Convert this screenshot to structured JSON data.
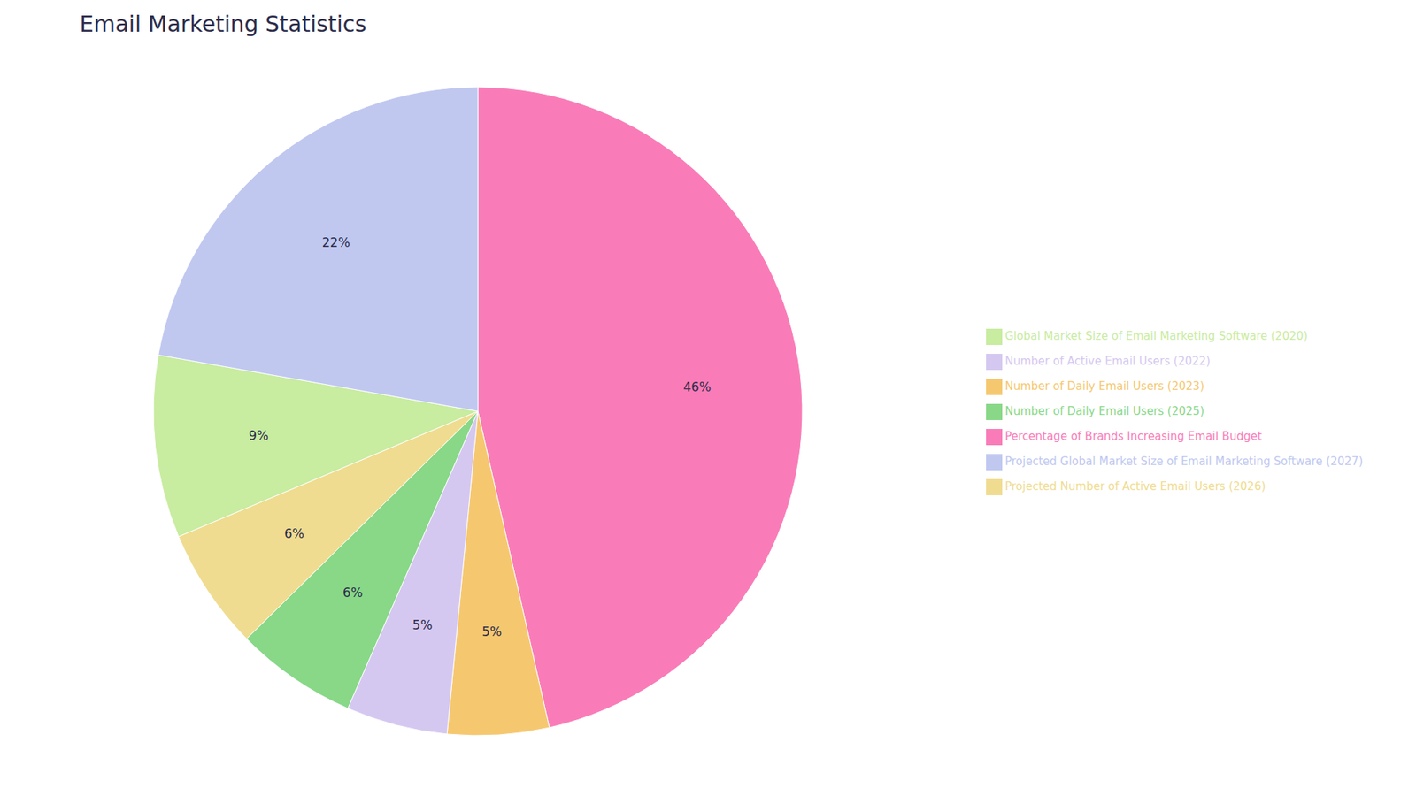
{
  "chart_data": {
    "type": "pie",
    "title": "Email Marketing Statistics",
    "categories": [
      "Percentage of Brands Increasing Email Budget",
      "Number of Daily Email Users (2023)",
      "Number of Active Email Users (2022)",
      "Number of Daily Email Users (2025)",
      "Projected Number of Active Email Users (2026)",
      "Global Market Size of Email Marketing Software (2020)",
      "Projected Global Market Size of Email Marketing Software (2027)"
    ],
    "values": [
      46,
      5,
      5,
      6,
      6,
      9,
      22
    ],
    "value_labels": [
      "46%",
      "5%",
      "5%",
      "6%",
      "6%",
      "9%",
      "22%"
    ],
    "colors": [
      "#F97CB8",
      "#F5C870",
      "#D5C8F0",
      "#88D888",
      "#F0DC90",
      "#C8ECA0",
      "#C0C8F0"
    ],
    "data_labels": true,
    "legend": "right"
  }
}
